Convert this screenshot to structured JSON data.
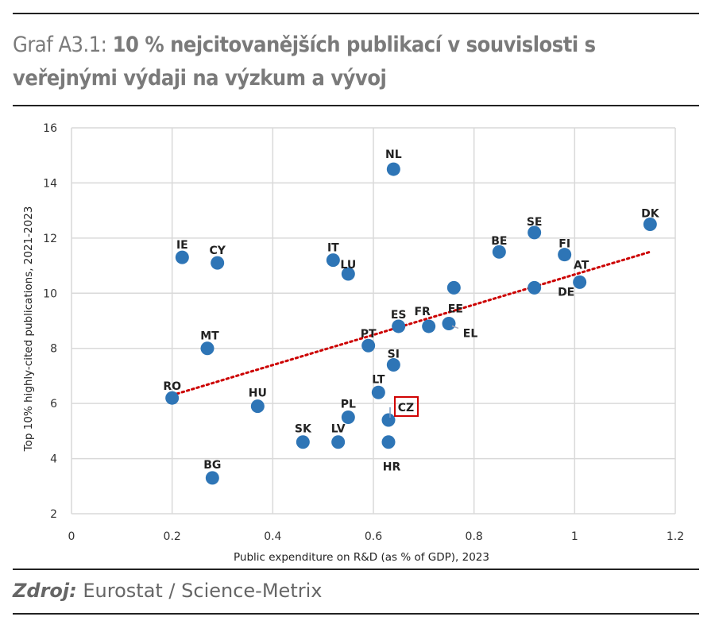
{
  "title": {
    "prefix": "Graf A3.1:",
    "bold": "10 % nejcitovanějších publikací v souvislosti s veřejnými výdaji na výzkum a vývoj"
  },
  "source": {
    "label": "Zdroj:",
    "text": "Eurostat / Science-Metrix"
  },
  "chart_data": {
    "type": "scatter",
    "xlabel": "Public expenditure on R&D (as % of GDP), 2023",
    "ylabel": "Top 10% highly-cited publications, 2021-2023",
    "xlim": [
      0,
      1.2
    ],
    "ylim": [
      2,
      16
    ],
    "xticks": [
      "0",
      "0.2",
      "0.4",
      "0.6",
      "0.8",
      "1",
      "1.2"
    ],
    "yticks": [
      "2",
      "4",
      "6",
      "8",
      "10",
      "12",
      "14",
      "16"
    ],
    "grid": true,
    "point_color": "#2e75b6",
    "trendline": {
      "style": "dotted",
      "color": "#cc0000",
      "x": [
        0.2,
        1.15
      ],
      "y": [
        6.3,
        11.5
      ]
    },
    "highlight": {
      "label": "CZ",
      "color": "#d00000"
    },
    "points": [
      {
        "label": "NL",
        "x": 0.64,
        "y": 14.5
      },
      {
        "label": "DK",
        "x": 1.15,
        "y": 12.5
      },
      {
        "label": "SE",
        "x": 0.92,
        "y": 12.2
      },
      {
        "label": "BE",
        "x": 0.85,
        "y": 11.5
      },
      {
        "label": "FI",
        "x": 0.98,
        "y": 11.4
      },
      {
        "label": "AT",
        "x": 1.01,
        "y": 10.4
      },
      {
        "label": "DE",
        "x": 0.92,
        "y": 10.2
      },
      {
        "label": "IE",
        "x": 0.22,
        "y": 11.3
      },
      {
        "label": "CY",
        "x": 0.29,
        "y": 11.1
      },
      {
        "label": "IT",
        "x": 0.52,
        "y": 11.2
      },
      {
        "label": "LU",
        "x": 0.55,
        "y": 10.7
      },
      {
        "label": "EE",
        "x": 0.76,
        "y": 10.2
      },
      {
        "label": "EL",
        "x": 0.75,
        "y": 8.9
      },
      {
        "label": "FR",
        "x": 0.71,
        "y": 8.8
      },
      {
        "label": "ES",
        "x": 0.65,
        "y": 8.8
      },
      {
        "label": "PT",
        "x": 0.59,
        "y": 8.1
      },
      {
        "label": "SI",
        "x": 0.64,
        "y": 7.4
      },
      {
        "label": "MT",
        "x": 0.27,
        "y": 8.0
      },
      {
        "label": "RO",
        "x": 0.2,
        "y": 6.2
      },
      {
        "label": "LT",
        "x": 0.61,
        "y": 6.4
      },
      {
        "label": "HU",
        "x": 0.37,
        "y": 5.9
      },
      {
        "label": "PL",
        "x": 0.55,
        "y": 5.5
      },
      {
        "label": "CZ",
        "x": 0.63,
        "y": 5.4
      },
      {
        "label": "SK",
        "x": 0.46,
        "y": 4.6
      },
      {
        "label": "LV",
        "x": 0.53,
        "y": 4.6
      },
      {
        "label": "HR",
        "x": 0.63,
        "y": 4.6
      },
      {
        "label": "BG",
        "x": 0.28,
        "y": 3.3
      }
    ]
  }
}
